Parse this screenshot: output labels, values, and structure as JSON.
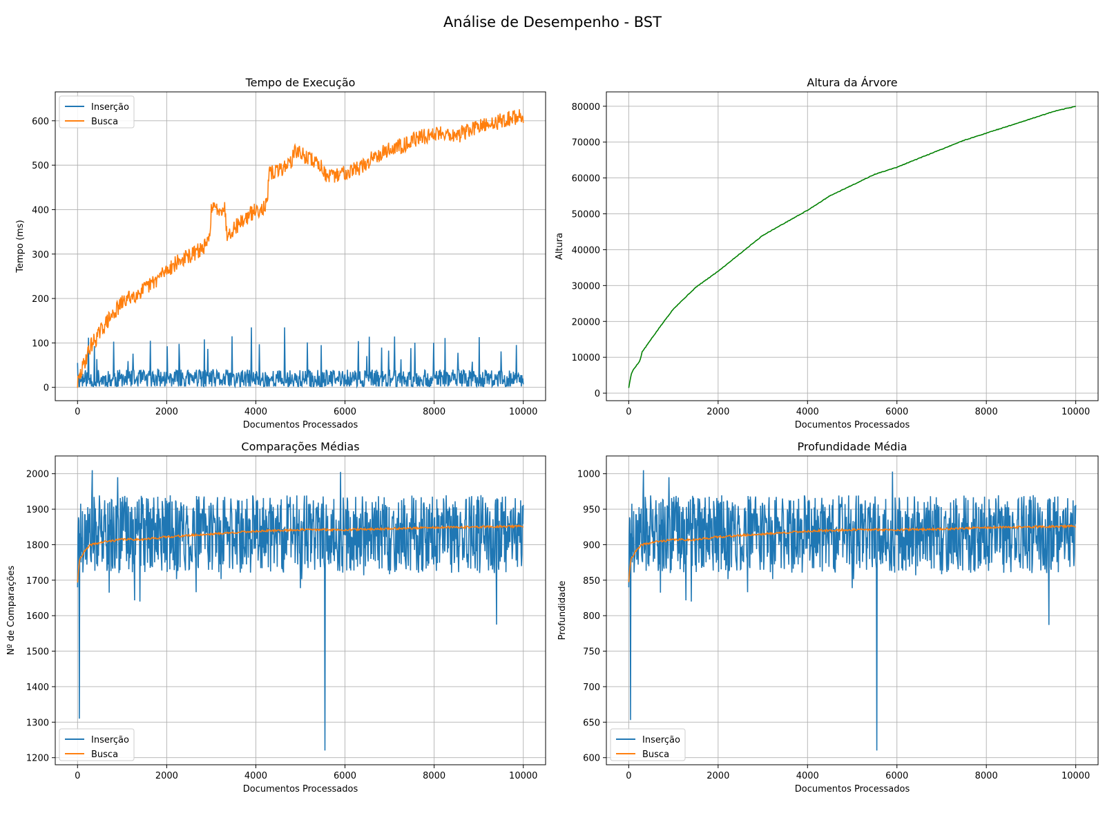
{
  "figure": {
    "title": "Análise de Desempenho - BST"
  },
  "chart_data": [
    {
      "id": "tempo",
      "type": "line",
      "title": "Tempo de Execução",
      "xlabel": "Documentos Processados",
      "ylabel": "Tempo (ms)",
      "xlim": [
        -500,
        10500
      ],
      "ylim": [
        -30,
        665
      ],
      "xticks": [
        0,
        2000,
        4000,
        6000,
        8000,
        10000
      ],
      "yticks": [
        0,
        100,
        200,
        300,
        400,
        500,
        600
      ],
      "grid": true,
      "legend": "top-left",
      "series": [
        {
          "name": "Inserção",
          "color": "#1f77b4",
          "gen": "noise",
          "noise": {
            "seed": 11,
            "base": 18,
            "spread": 22,
            "spikeP": 0.03,
            "spikeMax": 95,
            "min": 2,
            "n": 900
          },
          "points": [
            [
              0,
              55
            ],
            [
              250,
              112
            ],
            [
              380,
              93
            ],
            [
              810,
              103
            ],
            [
              1630,
              105
            ],
            [
              2280,
              98
            ],
            [
              2850,
              108
            ],
            [
              3470,
              115
            ],
            [
              4080,
              97
            ],
            [
              3900,
              135
            ],
            [
              4640,
              135
            ],
            [
              6300,
              104
            ],
            [
              9010,
              113
            ],
            [
              9500,
              81
            ]
          ]
        },
        {
          "name": "Busca",
          "color": "#ff7f0e",
          "gen": "trend",
          "noise": {
            "seed": 29,
            "amp": 18,
            "n": 900
          },
          "points": [
            [
              0,
              8
            ],
            [
              150,
              55
            ],
            [
              300,
              95
            ],
            [
              450,
              115
            ],
            [
              600,
              140
            ],
            [
              800,
              165
            ],
            [
              1000,
              190
            ],
            [
              1200,
              205
            ],
            [
              1500,
              220
            ],
            [
              1800,
              245
            ],
            [
              2000,
              265
            ],
            [
              2300,
              285
            ],
            [
              2600,
              300
            ],
            [
              2900,
              320
            ],
            [
              2950,
              330
            ],
            [
              3000,
              400
            ],
            [
              3300,
              405
            ],
            [
              3350,
              345
            ],
            [
              3700,
              375
            ],
            [
              3950,
              395
            ],
            [
              4250,
              410
            ],
            [
              4300,
              480
            ],
            [
              4550,
              490
            ],
            [
              4800,
              510
            ],
            [
              4900,
              535
            ],
            [
              5000,
              525
            ],
            [
              5300,
              510
            ],
            [
              5500,
              495
            ],
            [
              5600,
              470
            ],
            [
              6000,
              485
            ],
            [
              6500,
              500
            ],
            [
              6600,
              520
            ],
            [
              7000,
              535
            ],
            [
              7400,
              550
            ],
            [
              7600,
              560
            ],
            [
              7800,
              565
            ],
            [
              8200,
              575
            ],
            [
              8500,
              565
            ],
            [
              8800,
              580
            ],
            [
              9200,
              590
            ],
            [
              9500,
              600
            ],
            [
              10000,
              612
            ]
          ]
        }
      ]
    },
    {
      "id": "altura",
      "type": "line",
      "title": "Altura da Árvore",
      "xlabel": "Documentos Processados",
      "ylabel": "Altura",
      "xlim": [
        -500,
        10500
      ],
      "ylim": [
        -2100,
        84000
      ],
      "xticks": [
        0,
        2000,
        4000,
        6000,
        8000,
        10000
      ],
      "yticks": [
        0,
        10000,
        20000,
        30000,
        40000,
        50000,
        60000,
        70000,
        80000
      ],
      "grid": true,
      "legend": "none",
      "series": [
        {
          "name": "",
          "color": "#008000",
          "gen": "smooth",
          "noise": {
            "seed": 5,
            "amp": 250,
            "n": 500
          },
          "points": [
            [
              0,
              1500
            ],
            [
              50,
              5000
            ],
            [
              100,
              6500
            ],
            [
              250,
              9000
            ],
            [
              300,
              11500
            ],
            [
              500,
              15000
            ],
            [
              700,
              18500
            ],
            [
              1000,
              23500
            ],
            [
              1500,
              29500
            ],
            [
              2000,
              34000
            ],
            [
              2500,
              39000
            ],
            [
              3000,
              44000
            ],
            [
              3500,
              47500
            ],
            [
              4000,
              51000
            ],
            [
              4500,
              55000
            ],
            [
              5000,
              58000
            ],
            [
              5500,
              61000
            ],
            [
              6000,
              63000
            ],
            [
              6500,
              65500
            ],
            [
              7000,
              68000
            ],
            [
              7500,
              70500
            ],
            [
              8000,
              72500
            ],
            [
              8500,
              74500
            ],
            [
              9000,
              76500
            ],
            [
              9500,
              78500
            ],
            [
              10000,
              80000
            ]
          ]
        }
      ]
    },
    {
      "id": "comparacoes",
      "type": "line",
      "title": "Comparações Médias",
      "xlabel": "Documentos Processados",
      "ylabel": "Nº de Comparações",
      "xlim": [
        -500,
        10500
      ],
      "ylim": [
        1180,
        2050
      ],
      "xticks": [
        0,
        2000,
        4000,
        6000,
        8000,
        10000
      ],
      "yticks": [
        1200,
        1300,
        1400,
        1500,
        1600,
        1700,
        1800,
        1900,
        2000
      ],
      "grid": true,
      "legend": "bottom-left",
      "series": [
        {
          "name": "Inserção",
          "color": "#1f77b4",
          "gen": "noise",
          "noise": {
            "seed": 17,
            "base": 1830,
            "spread": 110,
            "spikeP": 0.025,
            "spikeMax": -150,
            "min": 1500,
            "n": 1000
          },
          "points": [
            [
              0,
              1680
            ],
            [
              40,
              1310
            ],
            [
              80,
              1750
            ],
            [
              330,
              2010
            ],
            [
              900,
              1990
            ],
            [
              1400,
              1640
            ],
            [
              5550,
              1220
            ],
            [
              5900,
              2005
            ],
            [
              9400,
              1575
            ],
            [
              10000,
              1912
            ]
          ]
        },
        {
          "name": "Busca",
          "color": "#ff7f0e",
          "gen": "trend",
          "noise": {
            "seed": 41,
            "amp": 3,
            "n": 600
          },
          "points": [
            [
              0,
              1695
            ],
            [
              50,
              1760
            ],
            [
              150,
              1780
            ],
            [
              300,
              1800
            ],
            [
              600,
              1808
            ],
            [
              1000,
              1815
            ],
            [
              1500,
              1815
            ],
            [
              2000,
              1822
            ],
            [
              3000,
              1830
            ],
            [
              4000,
              1838
            ],
            [
              5000,
              1842
            ],
            [
              6000,
              1842
            ],
            [
              7000,
              1845
            ],
            [
              8000,
              1848
            ],
            [
              9000,
              1850
            ],
            [
              10000,
              1852
            ]
          ]
        }
      ]
    },
    {
      "id": "profundidade",
      "type": "line",
      "title": "Profundidade Média",
      "xlabel": "Documentos Processados",
      "ylabel": "Profundidade",
      "xlim": [
        -500,
        10500
      ],
      "ylim": [
        590,
        1025
      ],
      "xticks": [
        0,
        2000,
        4000,
        6000,
        8000,
        10000
      ],
      "yticks": [
        600,
        650,
        700,
        750,
        800,
        850,
        900,
        950,
        1000
      ],
      "grid": true,
      "legend": "bottom-left",
      "series": [
        {
          "name": "Inserção",
          "color": "#1f77b4",
          "gen": "noise",
          "noise": {
            "seed": 17,
            "base": 915,
            "spread": 55,
            "spikeP": 0.025,
            "spikeMax": -75,
            "min": 760,
            "n": 1000
          },
          "points": [
            [
              0,
              840
            ],
            [
              40,
              653
            ],
            [
              80,
              875
            ],
            [
              330,
              1005
            ],
            [
              900,
              995
            ],
            [
              1400,
              820
            ],
            [
              5550,
              610
            ],
            [
              5900,
              1003
            ],
            [
              9400,
              787
            ],
            [
              10000,
              956
            ]
          ]
        },
        {
          "name": "Busca",
          "color": "#ff7f0e",
          "gen": "trend",
          "noise": {
            "seed": 41,
            "amp": 1.5,
            "n": 600
          },
          "points": [
            [
              0,
              848
            ],
            [
              50,
              880
            ],
            [
              150,
              890
            ],
            [
              300,
              900
            ],
            [
              600,
              904
            ],
            [
              1000,
              907
            ],
            [
              1500,
              907
            ],
            [
              2000,
              911
            ],
            [
              3000,
              915
            ],
            [
              4000,
              919
            ],
            [
              5000,
              921
            ],
            [
              6000,
              921
            ],
            [
              7000,
              922
            ],
            [
              8000,
              924
            ],
            [
              9000,
              925
            ],
            [
              10000,
              926
            ]
          ]
        }
      ]
    }
  ]
}
